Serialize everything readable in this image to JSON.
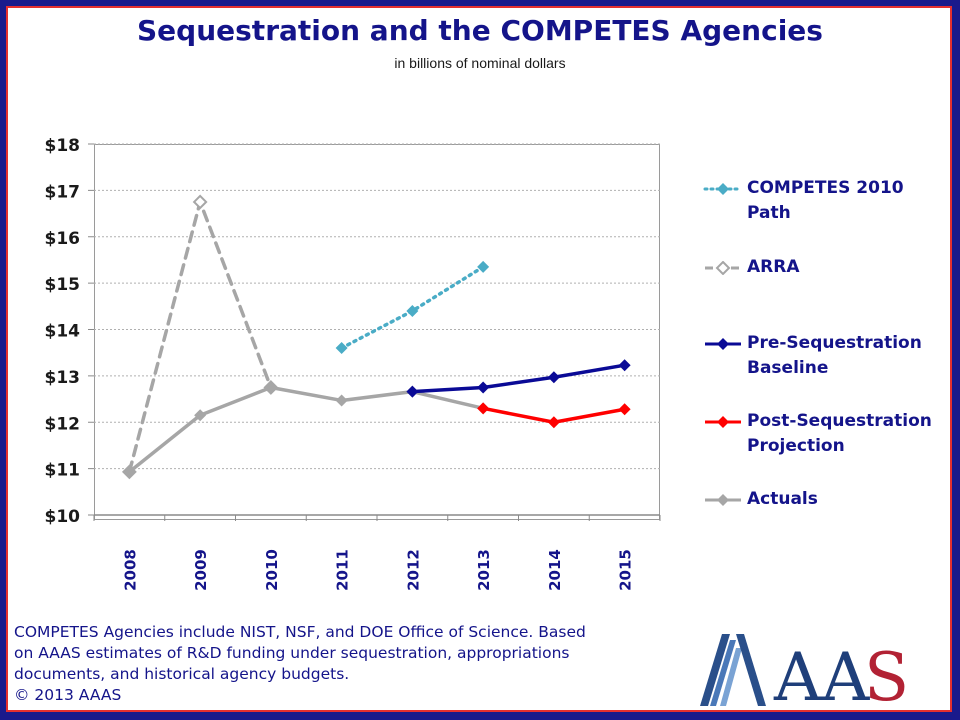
{
  "header": {
    "title": "Sequestration and the COMPETES Agencies",
    "subtitle": "in billions of nominal dollars"
  },
  "chart_data": {
    "type": "line",
    "title": "Sequestration and the COMPETES Agencies",
    "subtitle": "in billions of nominal dollars",
    "xlabel": "",
    "ylabel": "",
    "categories": [
      "2008",
      "2009",
      "2010",
      "2011",
      "2012",
      "2013",
      "2014",
      "2015"
    ],
    "y_tick_labels": [
      "$10",
      "$11",
      "$12",
      "$13",
      "$14",
      "$15",
      "$16",
      "$17",
      "$18"
    ],
    "ylim": [
      10,
      18
    ],
    "grid": "horizontal",
    "legend_position": "right",
    "series": [
      {
        "name": "COMPETES 2010 Path",
        "color": "#4aacc6",
        "style": "dotted",
        "marker": "diamond-filled",
        "values": [
          null,
          null,
          null,
          13.6,
          14.4,
          15.35,
          null,
          null
        ]
      },
      {
        "name": "ARRA",
        "color": "#a6a6a6",
        "style": "dashed",
        "marker": "diamond-open",
        "values": [
          10.93,
          16.75,
          12.75,
          null,
          null,
          null,
          null,
          null
        ]
      },
      {
        "name": "Pre-Sequestration Baseline",
        "color": "#0a0a96",
        "style": "solid",
        "marker": "diamond-filled",
        "values": [
          null,
          null,
          null,
          null,
          12.66,
          12.75,
          12.97,
          13.23
        ]
      },
      {
        "name": "Post-Sequestration Projection",
        "color": "#ff0000",
        "style": "solid",
        "marker": "diamond-filled",
        "values": [
          null,
          null,
          null,
          null,
          null,
          12.3,
          12.0,
          12.28
        ]
      },
      {
        "name": "Actuals",
        "color": "#a6a6a6",
        "style": "solid",
        "marker": "diamond-filled",
        "values": [
          10.93,
          12.15,
          12.75,
          12.47,
          12.66,
          12.3,
          null,
          null
        ]
      }
    ]
  },
  "legend": {
    "items": [
      {
        "label": "COMPETES 2010\nPath"
      },
      {
        "label": "ARRA"
      },
      {
        "label": "Pre-Sequestration\nBaseline"
      },
      {
        "label": "Post-Sequestration\nProjection"
      },
      {
        "label": "Actuals"
      }
    ]
  },
  "footnote": {
    "line1": "COMPETES Agencies include NIST, NSF, and DOE Office of Science. Based",
    "line2": "on AAAS estimates of R&D funding under sequestration, appropriations",
    "line3": "documents, and historical agency budgets.",
    "line4": "© 2013 AAAS"
  },
  "logo": {
    "text": "AAAS"
  },
  "colors": {
    "frame_blue": "#1a1a8c",
    "frame_red": "#e53030",
    "title_navy": "#14148a"
  }
}
